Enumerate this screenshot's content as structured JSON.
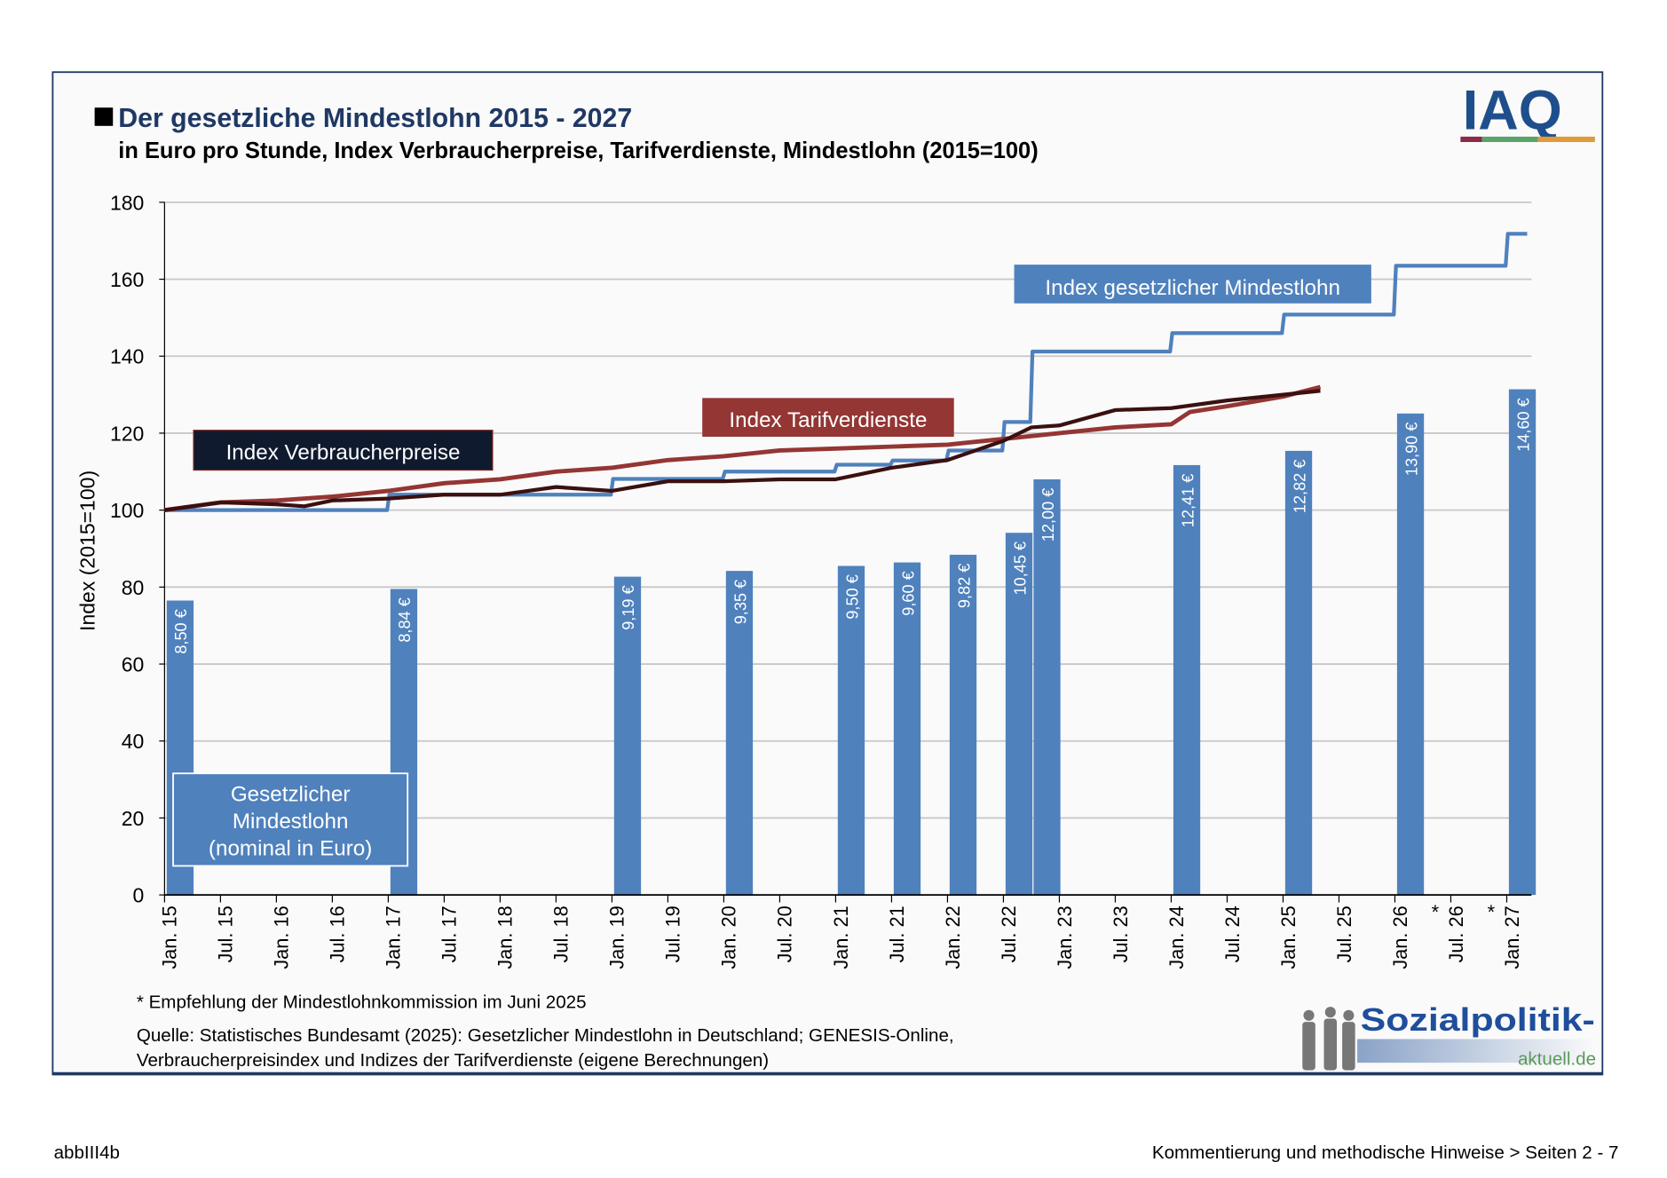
{
  "title": "Der gesetzliche Mindestlohn 2015 - 2027",
  "subtitle": "in Euro pro Stunde, Index Verbraucherpreise, Tarifverdienste, Mindestlohn (2015=100)",
  "logo_iaq": "IAQ",
  "logo_sozialpolitik": "Sozialpolitik-",
  "logo_sozialpolitik_sub": "aktuell.de",
  "footnote": "* Empfehlung der Mindestlohnkommission im Juni 2025",
  "source_line1": "Quelle: Statistisches Bundesamt (2025): Gesetzlicher Mindestlohn in Deutschland; GENESIS-Online,",
  "source_line2": "Verbraucherpreisindex und Indizes der Tarifverdienste (eigene Berechnungen)",
  "page_footer_left": "abbIII4b",
  "page_footer_right": "Kommentierung und methodische Hinweise > Seiten 2 - 7",
  "colors": {
    "bar": "#4f81bd",
    "mindestlohn": "#4f81bd",
    "tarif": "#943634",
    "vpi": "#3b1010",
    "vpi_label_bg": "#0f1a2e",
    "title": "#1f3864"
  },
  "chart_data": {
    "type": "bar+line",
    "ylabel": "Index (2015=100)",
    "ylim": [
      0,
      180
    ],
    "yticks": [
      0,
      20,
      40,
      60,
      80,
      100,
      120,
      140,
      160,
      180
    ],
    "grid": true,
    "xticks": [
      "Jan. 15",
      "Jul. 15",
      "Jan. 16",
      "Jul. 16",
      "Jan. 17",
      "Jul. 17",
      "Jan. 18",
      "Jul. 18",
      "Jan. 19",
      "Jul. 19",
      "Jan. 20",
      "Jul. 20",
      "Jan. 21",
      "Jul. 21",
      "Jan. 22",
      "Jul. 22",
      "Jan. 23",
      "Jul. 23",
      "Jan. 24",
      "Jul. 24",
      "Jan. 25",
      "Jul. 25",
      "Jan. 26",
      "Jul. 26*",
      "Jan. 27*"
    ],
    "bars": {
      "name": "Gesetzlicher Mindestlohn (nominal in Euro)",
      "name_lines": [
        "Gesetzlicher",
        "Mindestlohn",
        "(nominal in Euro)"
      ],
      "months_from_jan15": [
        0,
        24,
        48,
        60,
        72,
        78,
        84,
        90,
        93,
        108,
        120,
        132,
        144
      ],
      "euro": [
        8.5,
        8.84,
        9.19,
        9.35,
        9.5,
        9.6,
        9.82,
        10.45,
        12.0,
        12.41,
        12.82,
        13.9,
        14.6
      ],
      "labels": [
        "8,50 €",
        "8,84 €",
        "9,19 €",
        "9,35 €",
        "9,50 €",
        "9,60 €",
        "9,82 €",
        "10,45 €",
        "12,00 €",
        "12,41 €",
        "12,82 €",
        "13,90 €",
        "14,60 €"
      ],
      "index_height": [
        76.5,
        79.5,
        82.7,
        84.2,
        85.5,
        86.4,
        88.4,
        94.1,
        108,
        111.7,
        115.4,
        125.1,
        131.4
      ]
    },
    "series": [
      {
        "name": "Index gesetzlicher Mindestlohn",
        "step": true,
        "months": [
          0,
          24,
          48,
          60,
          72,
          78,
          84,
          90,
          93,
          108,
          120,
          132,
          144,
          145
        ],
        "values": [
          100,
          104,
          108.1,
          110,
          111.8,
          112.9,
          115.5,
          122.9,
          141.2,
          146,
          150.8,
          163.5,
          171.8,
          171.8
        ]
      },
      {
        "name": "Index Tarifverdienste",
        "months": [
          0,
          6,
          12,
          18,
          24,
          30,
          36,
          42,
          48,
          54,
          60,
          66,
          72,
          78,
          84,
          90,
          96,
          102,
          108,
          110,
          114,
          120,
          124
        ],
        "values": [
          100,
          102,
          102.5,
          103.5,
          105,
          107,
          108,
          110,
          111,
          113,
          114,
          115.5,
          116,
          116.5,
          117,
          118.5,
          120,
          121.5,
          122.3,
          125.5,
          127,
          129.5,
          132
        ]
      },
      {
        "name": "Index Verbraucherpreise",
        "months": [
          0,
          6,
          12,
          15,
          18,
          24,
          30,
          36,
          42,
          48,
          54,
          60,
          66,
          72,
          78,
          84,
          90,
          93,
          96,
          102,
          108,
          114,
          120,
          124
        ],
        "values": [
          100,
          102,
          101.5,
          101,
          102.5,
          103,
          104,
          104,
          106,
          105,
          107.5,
          107.5,
          108,
          108,
          111,
          113,
          118,
          121.5,
          122,
          126,
          126.5,
          128.5,
          130,
          131
        ]
      }
    ]
  }
}
